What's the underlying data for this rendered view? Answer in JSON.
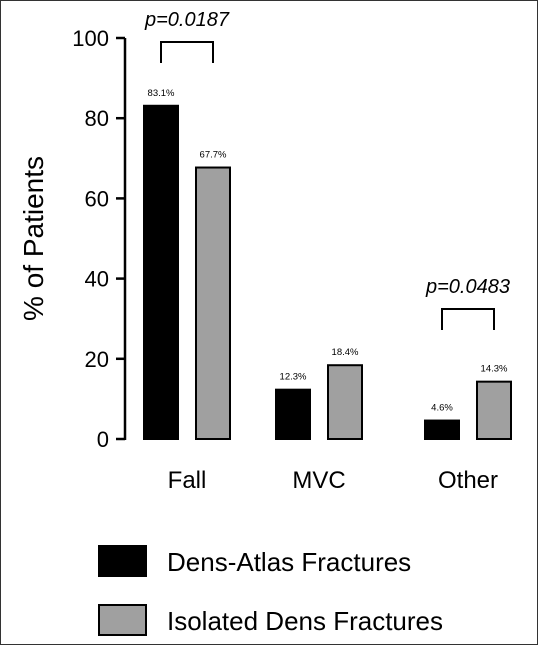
{
  "chart_data": {
    "type": "bar",
    "categories": [
      "Fall",
      "MVC",
      "Other"
    ],
    "series": [
      {
        "name": "Dens-Atlas Fractures",
        "values": [
          83.1,
          12.3,
          4.6
        ],
        "labels": [
          "83.1%",
          "12.3%",
          "4.6%"
        ],
        "color": "#000000"
      },
      {
        "name": "Isolated Dens Fractures",
        "values": [
          67.7,
          18.4,
          14.3
        ],
        "labels": [
          "67.7%",
          "18.4%",
          "14.3%"
        ],
        "color": "#a0a0a0"
      }
    ],
    "ylabel": "% of Patients",
    "xlabel": "",
    "ylim": [
      0,
      100
    ],
    "yticks": [
      "0",
      "20",
      "40",
      "60",
      "80",
      "100"
    ],
    "annotations": [
      {
        "category": "Fall",
        "text": "p=0.0187"
      },
      {
        "category": "Other",
        "text": "p=0.0483"
      }
    ],
    "grid": false,
    "legend_position": "bottom"
  }
}
